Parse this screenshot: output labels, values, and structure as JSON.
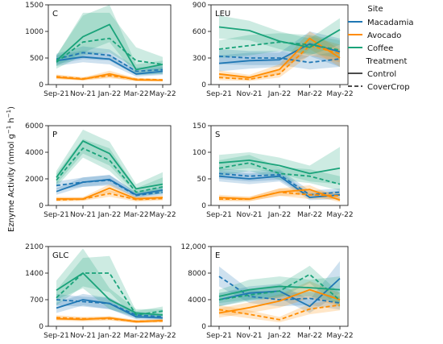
{
  "figure": {
    "ylabel_main": "Eznyme Activity (nmol g",
    "ylabel_sup1": "−1",
    "ylabel_mid": " h",
    "ylabel_sup2": "−1",
    "ylabel_end": ")"
  },
  "legend": {
    "site_title": "Site",
    "sites": [
      {
        "name": "Macadamia",
        "color": "#1f77b4"
      },
      {
        "name": "Avocado",
        "color": "#ff8c00"
      },
      {
        "name": "Coffee",
        "color": "#1aa37a"
      }
    ],
    "treatment_title": "Treatment",
    "treatments": [
      {
        "name": "Control",
        "dash": "solid"
      },
      {
        "name": "CoverCrop",
        "dash": "dashed"
      }
    ]
  },
  "chart_data": [
    {
      "type": "line",
      "title": "C",
      "categories": [
        "Sep-21",
        "Nov-21",
        "Jan-22",
        "Mar-22",
        "May-22"
      ],
      "ylim": [
        0,
        1500
      ],
      "yticks": [
        "0",
        "500",
        "1000",
        "1500"
      ],
      "ytick_values": [
        0,
        500,
        1000,
        1500
      ],
      "series": [
        {
          "site": "Macadamia",
          "treatment": "Control",
          "values": [
            450,
            520,
            480,
            200,
            250
          ],
          "lower": [
            350,
            420,
            380,
            150,
            180
          ],
          "upper": [
            550,
            640,
            580,
            260,
            330
          ]
        },
        {
          "site": "Macadamia",
          "treatment": "CoverCrop",
          "values": [
            480,
            600,
            550,
            250,
            280
          ],
          "lower": [
            380,
            480,
            450,
            180,
            200
          ],
          "upper": [
            580,
            720,
            660,
            320,
            360
          ]
        },
        {
          "site": "Avocado",
          "treatment": "Control",
          "values": [
            140,
            100,
            200,
            90,
            80
          ],
          "lower": [
            100,
            80,
            140,
            60,
            60
          ],
          "upper": [
            180,
            130,
            260,
            120,
            100
          ]
        },
        {
          "site": "Avocado",
          "treatment": "CoverCrop",
          "values": [
            150,
            110,
            170,
            100,
            90
          ],
          "lower": [
            110,
            80,
            120,
            70,
            70
          ],
          "upper": [
            190,
            140,
            220,
            130,
            110
          ]
        },
        {
          "site": "Coffee",
          "treatment": "Control",
          "values": [
            450,
            900,
            1130,
            280,
            380
          ],
          "lower": [
            350,
            600,
            800,
            180,
            200
          ],
          "upper": [
            550,
            1300,
            1500,
            380,
            450
          ]
        },
        {
          "site": "Coffee",
          "treatment": "CoverCrop",
          "values": [
            420,
            800,
            870,
            450,
            380
          ],
          "lower": [
            300,
            550,
            600,
            300,
            250
          ],
          "upper": [
            540,
            1350,
            1350,
            700,
            520
          ]
        }
      ]
    },
    {
      "type": "line",
      "title": "LEU",
      "categories": [
        "Sep-21",
        "Nov-21",
        "Jan-22",
        "Mar-22",
        "May-22"
      ],
      "ylim": [
        0,
        900
      ],
      "yticks": [
        "0",
        "300",
        "600",
        "900"
      ],
      "ytick_values": [
        0,
        300,
        600,
        900
      ],
      "series": [
        {
          "site": "Macadamia",
          "treatment": "Control",
          "values": [
            240,
            270,
            280,
            460,
            370
          ],
          "lower": [
            150,
            180,
            200,
            320,
            200
          ],
          "upper": [
            330,
            360,
            360,
            600,
            520
          ]
        },
        {
          "site": "Macadamia",
          "treatment": "CoverCrop",
          "values": [
            320,
            300,
            300,
            250,
            290
          ],
          "lower": [
            230,
            220,
            220,
            170,
            200
          ],
          "upper": [
            400,
            380,
            380,
            320,
            380
          ]
        },
        {
          "site": "Avocado",
          "treatment": "Control",
          "values": [
            120,
            80,
            170,
            520,
            300
          ],
          "lower": [
            80,
            50,
            120,
            400,
            200
          ],
          "upper": [
            160,
            110,
            230,
            600,
            400
          ]
        },
        {
          "site": "Avocado",
          "treatment": "CoverCrop",
          "values": [
            80,
            60,
            120,
            440,
            350
          ],
          "lower": [
            50,
            40,
            80,
            330,
            250
          ],
          "upper": [
            110,
            90,
            160,
            550,
            450
          ]
        },
        {
          "site": "Coffee",
          "treatment": "Control",
          "values": [
            650,
            610,
            490,
            420,
            620
          ],
          "lower": [
            520,
            500,
            400,
            330,
            450
          ],
          "upper": [
            780,
            720,
            600,
            520,
            750
          ]
        },
        {
          "site": "Coffee",
          "treatment": "CoverCrop",
          "values": [
            400,
            440,
            480,
            450,
            390
          ],
          "lower": [
            300,
            330,
            380,
            350,
            300
          ],
          "upper": [
            500,
            560,
            580,
            560,
            500
          ]
        }
      ]
    },
    {
      "type": "line",
      "title": "P",
      "categories": [
        "Sep-21",
        "Nov-21",
        "Jan-22",
        "Mar-22",
        "May-22"
      ],
      "ylim": [
        0,
        6000
      ],
      "yticks": [
        "0",
        "2000",
        "4000",
        "6000"
      ],
      "ytick_values": [
        0,
        2000,
        4000,
        6000
      ],
      "series": [
        {
          "site": "Macadamia",
          "treatment": "Control",
          "values": [
            1050,
            1750,
            1950,
            800,
            1150
          ],
          "lower": [
            800,
            1400,
            1600,
            600,
            900
          ],
          "upper": [
            1300,
            2100,
            2300,
            1000,
            1400
          ]
        },
        {
          "site": "Macadamia",
          "treatment": "CoverCrop",
          "values": [
            1500,
            1750,
            1900,
            750,
            1000
          ],
          "lower": [
            1200,
            1400,
            1500,
            550,
            750
          ],
          "upper": [
            1800,
            2100,
            2300,
            950,
            1250
          ]
        },
        {
          "site": "Avocado",
          "treatment": "Control",
          "values": [
            500,
            480,
            1300,
            500,
            600
          ],
          "lower": [
            350,
            350,
            1000,
            350,
            450
          ],
          "upper": [
            650,
            620,
            1600,
            650,
            750
          ]
        },
        {
          "site": "Avocado",
          "treatment": "CoverCrop",
          "values": [
            420,
            480,
            900,
            450,
            520
          ],
          "lower": [
            300,
            350,
            650,
            300,
            380
          ],
          "upper": [
            550,
            620,
            1150,
            600,
            660
          ]
        },
        {
          "site": "Coffee",
          "treatment": "Control",
          "values": [
            2100,
            4850,
            3900,
            1250,
            1600
          ],
          "lower": [
            1600,
            3900,
            3000,
            900,
            1100
          ],
          "upper": [
            2600,
            5700,
            4800,
            1600,
            2500
          ]
        },
        {
          "site": "Coffee",
          "treatment": "CoverCrop",
          "values": [
            1900,
            4300,
            3400,
            1000,
            1400
          ],
          "lower": [
            1400,
            3600,
            2600,
            700,
            900
          ],
          "upper": [
            2400,
            5000,
            4300,
            1300,
            2100
          ]
        }
      ]
    },
    {
      "type": "line",
      "title": "S",
      "categories": [
        "Sep-21",
        "Nov-21",
        "Jan-22",
        "Mar-22",
        "May-22"
      ],
      "ylim": [
        0,
        150
      ],
      "yticks": [
        "0",
        "50",
        "100",
        "150"
      ],
      "ytick_values": [
        0,
        50,
        100,
        150
      ],
      "series": [
        {
          "site": "Macadamia",
          "treatment": "Control",
          "values": [
            55,
            50,
            55,
            15,
            20
          ],
          "lower": [
            45,
            40,
            45,
            10,
            12
          ],
          "upper": [
            65,
            60,
            65,
            22,
            28
          ]
        },
        {
          "site": "Macadamia",
          "treatment": "CoverCrop",
          "values": [
            60,
            55,
            58,
            20,
            25
          ],
          "lower": [
            50,
            45,
            48,
            14,
            18
          ],
          "upper": [
            70,
            65,
            68,
            28,
            32
          ]
        },
        {
          "site": "Avocado",
          "treatment": "Control",
          "values": [
            15,
            12,
            25,
            30,
            10
          ],
          "lower": [
            10,
            8,
            18,
            20,
            6
          ],
          "upper": [
            20,
            16,
            32,
            38,
            14
          ]
        },
        {
          "site": "Avocado",
          "treatment": "CoverCrop",
          "values": [
            12,
            12,
            25,
            20,
            18
          ],
          "lower": [
            8,
            8,
            18,
            12,
            12
          ],
          "upper": [
            16,
            16,
            32,
            28,
            24
          ]
        },
        {
          "site": "Coffee",
          "treatment": "Control",
          "values": [
            80,
            85,
            75,
            60,
            70
          ],
          "lower": [
            65,
            70,
            60,
            45,
            40
          ],
          "upper": [
            95,
            100,
            90,
            75,
            110
          ]
        },
        {
          "site": "Coffee",
          "treatment": "CoverCrop",
          "values": [
            70,
            80,
            60,
            55,
            40
          ],
          "lower": [
            55,
            65,
            48,
            42,
            28
          ],
          "upper": [
            85,
            95,
            72,
            68,
            55
          ]
        }
      ]
    },
    {
      "type": "line",
      "title": "GLC",
      "categories": [
        "Sep-21",
        "Nov-21",
        "Jan-22",
        "Mar-22",
        "May-22"
      ],
      "ylim": [
        0,
        2100
      ],
      "yticks": [
        "0",
        "700",
        "1400",
        "2100"
      ],
      "ytick_values": [
        0,
        700,
        1400,
        2100
      ],
      "series": [
        {
          "site": "Macadamia",
          "treatment": "Control",
          "values": [
            480,
            700,
            600,
            250,
            220
          ],
          "lower": [
            350,
            550,
            450,
            180,
            160
          ],
          "upper": [
            620,
            850,
            750,
            330,
            290
          ]
        },
        {
          "site": "Macadamia",
          "treatment": "CoverCrop",
          "values": [
            700,
            650,
            600,
            300,
            250
          ],
          "lower": [
            550,
            520,
            450,
            220,
            180
          ],
          "upper": [
            850,
            780,
            750,
            380,
            320
          ]
        },
        {
          "site": "Avocado",
          "treatment": "Control",
          "values": [
            200,
            180,
            220,
            120,
            150
          ],
          "lower": [
            150,
            130,
            170,
            80,
            110
          ],
          "upper": [
            250,
            230,
            270,
            160,
            190
          ]
        },
        {
          "site": "Avocado",
          "treatment": "CoverCrop",
          "values": [
            230,
            200,
            200,
            130,
            140
          ],
          "lower": [
            170,
            150,
            150,
            90,
            100
          ],
          "upper": [
            290,
            250,
            250,
            170,
            180
          ]
        },
        {
          "site": "Coffee",
          "treatment": "Control",
          "values": [
            950,
            1400,
            700,
            350,
            300
          ],
          "lower": [
            700,
            1000,
            450,
            250,
            200
          ],
          "upper": [
            1200,
            2050,
            1000,
            450,
            450
          ]
        },
        {
          "site": "Coffee",
          "treatment": "CoverCrop",
          "values": [
            750,
            1400,
            1400,
            300,
            400
          ],
          "lower": [
            550,
            1050,
            900,
            200,
            280
          ],
          "upper": [
            950,
            1800,
            1850,
            400,
            520
          ]
        }
      ]
    },
    {
      "type": "line",
      "title": "E",
      "categories": [
        "Sep-21",
        "Nov-21",
        "Jan-22",
        "Mar-22",
        "May-22"
      ],
      "ylim": [
        0,
        12000
      ],
      "yticks": [
        "0",
        "4000",
        "8000",
        "12,000"
      ],
      "ytick_values": [
        0,
        4000,
        8000,
        12000
      ],
      "series": [
        {
          "site": "Macadamia",
          "treatment": "Control",
          "values": [
            4000,
            5000,
            5300,
            3000,
            7200
          ],
          "lower": [
            3000,
            4000,
            4200,
            2000,
            5000
          ],
          "upper": [
            5000,
            6000,
            6400,
            4000,
            9800
          ]
        },
        {
          "site": "Macadamia",
          "treatment": "CoverCrop",
          "values": [
            7500,
            4500,
            4000,
            4200,
            3500
          ],
          "lower": [
            6000,
            3500,
            3000,
            3200,
            2500
          ],
          "upper": [
            9000,
            5500,
            5000,
            5200,
            4500
          ]
        },
        {
          "site": "Avocado",
          "treatment": "Control",
          "values": [
            2000,
            2800,
            3800,
            5500,
            4000
          ],
          "lower": [
            1300,
            2000,
            2800,
            4200,
            3000
          ],
          "upper": [
            2700,
            3600,
            4800,
            6800,
            5000
          ]
        },
        {
          "site": "Avocado",
          "treatment": "CoverCrop",
          "values": [
            2500,
            1800,
            1000,
            2600,
            3200
          ],
          "lower": [
            1800,
            1200,
            600,
            1800,
            2400
          ],
          "upper": [
            3200,
            2400,
            1400,
            3400,
            4000
          ]
        },
        {
          "site": "Coffee",
          "treatment": "Control",
          "values": [
            4500,
            5500,
            6000,
            5800,
            5500
          ],
          "lower": [
            3500,
            4000,
            4500,
            4500,
            3500
          ],
          "upper": [
            5500,
            7000,
            7500,
            7000,
            7500
          ]
        },
        {
          "site": "Coffee",
          "treatment": "CoverCrop",
          "values": [
            4000,
            4700,
            5300,
            7800,
            3900
          ],
          "lower": [
            3000,
            3800,
            4300,
            6500,
            2800
          ],
          "upper": [
            5000,
            5600,
            6300,
            9100,
            5000
          ]
        }
      ]
    }
  ]
}
